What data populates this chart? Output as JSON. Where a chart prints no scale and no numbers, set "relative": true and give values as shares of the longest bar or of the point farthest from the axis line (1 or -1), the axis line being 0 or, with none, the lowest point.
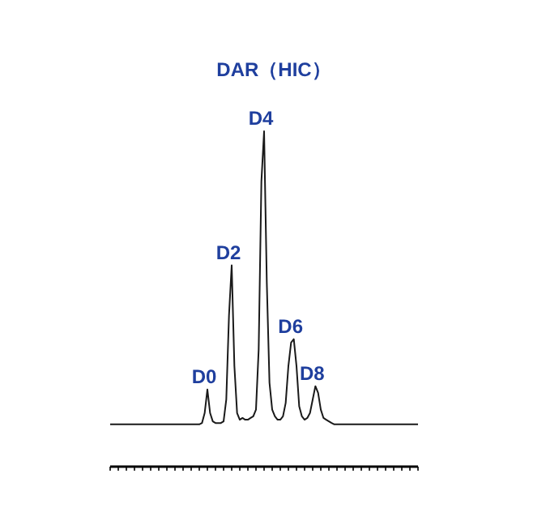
{
  "chart_data": {
    "type": "line",
    "title": "DAR（HIC）",
    "relative": true,
    "grid": false,
    "marker": "none",
    "line_style": "solid",
    "categories": [
      null,
      null,
      null,
      null,
      null,
      null,
      null,
      null,
      null,
      null,
      null,
      null,
      null,
      null,
      null,
      null,
      null,
      null,
      null,
      null,
      null,
      null,
      null,
      null,
      null,
      null,
      null,
      null,
      null,
      null,
      null,
      null,
      null,
      null,
      null,
      null,
      null,
      null,
      null,
      null,
      null,
      null,
      null,
      null,
      null,
      null,
      null,
      null,
      null,
      null,
      null,
      null,
      null,
      null,
      null,
      null,
      null,
      null,
      null,
      null,
      null,
      null,
      null,
      null,
      null,
      null,
      null,
      null,
      null,
      null,
      null,
      null,
      null,
      null,
      null,
      null,
      null,
      null,
      null,
      null,
      null,
      null,
      null,
      null,
      null,
      null,
      null,
      null,
      null,
      null,
      null,
      null,
      null,
      null,
      null,
      null,
      null,
      null,
      null,
      null,
      null,
      null,
      null,
      null,
      null,
      null,
      null,
      null,
      null,
      null,
      null,
      null,
      null,
      null,
      null
    ],
    "series": [
      {
        "color": "#1a1a1a",
        "values": [
          0.126,
          0.126,
          0.126,
          0.126,
          0.126,
          0.126,
          0.126,
          0.126,
          0.126,
          0.126,
          0.126,
          0.126,
          0.126,
          0.126,
          0.126,
          0.126,
          0.126,
          0.126,
          0.126,
          0.126,
          0.126,
          0.126,
          0.126,
          0.126,
          0.126,
          0.126,
          0.126,
          0.126,
          0.126,
          0.126,
          0.126,
          0.126,
          0.126,
          0.126,
          0.13,
          0.16,
          0.23,
          0.16,
          0.135,
          0.13,
          0.13,
          0.13,
          0.135,
          0.2,
          0.45,
          0.6,
          0.3,
          0.16,
          0.14,
          0.145,
          0.14,
          0.14,
          0.145,
          0.15,
          0.17,
          0.35,
          0.85,
          1,
          0.55,
          0.25,
          0.17,
          0.15,
          0.14,
          0.14,
          0.15,
          0.19,
          0.3,
          0.37,
          0.38,
          0.3,
          0.18,
          0.15,
          0.14,
          0.145,
          0.16,
          0.2,
          0.24,
          0.22,
          0.17,
          0.145,
          0.14,
          0.135,
          0.13,
          0.126,
          0.126,
          0.126,
          0.126,
          0.126,
          0.126,
          0.126,
          0.126,
          0.126,
          0.126,
          0.126,
          0.126,
          0.126,
          0.126,
          0.126,
          0.126,
          0.126,
          0.126,
          0.126,
          0.126,
          0.126,
          0.126,
          0.126,
          0.126,
          0.126,
          0.126,
          0.126,
          0.126,
          0.126,
          0.126,
          0.126,
          0.126
        ]
      }
    ],
    "annotations": [
      "D0",
      "D2",
      "D4",
      "D6",
      "D8"
    ]
  }
}
